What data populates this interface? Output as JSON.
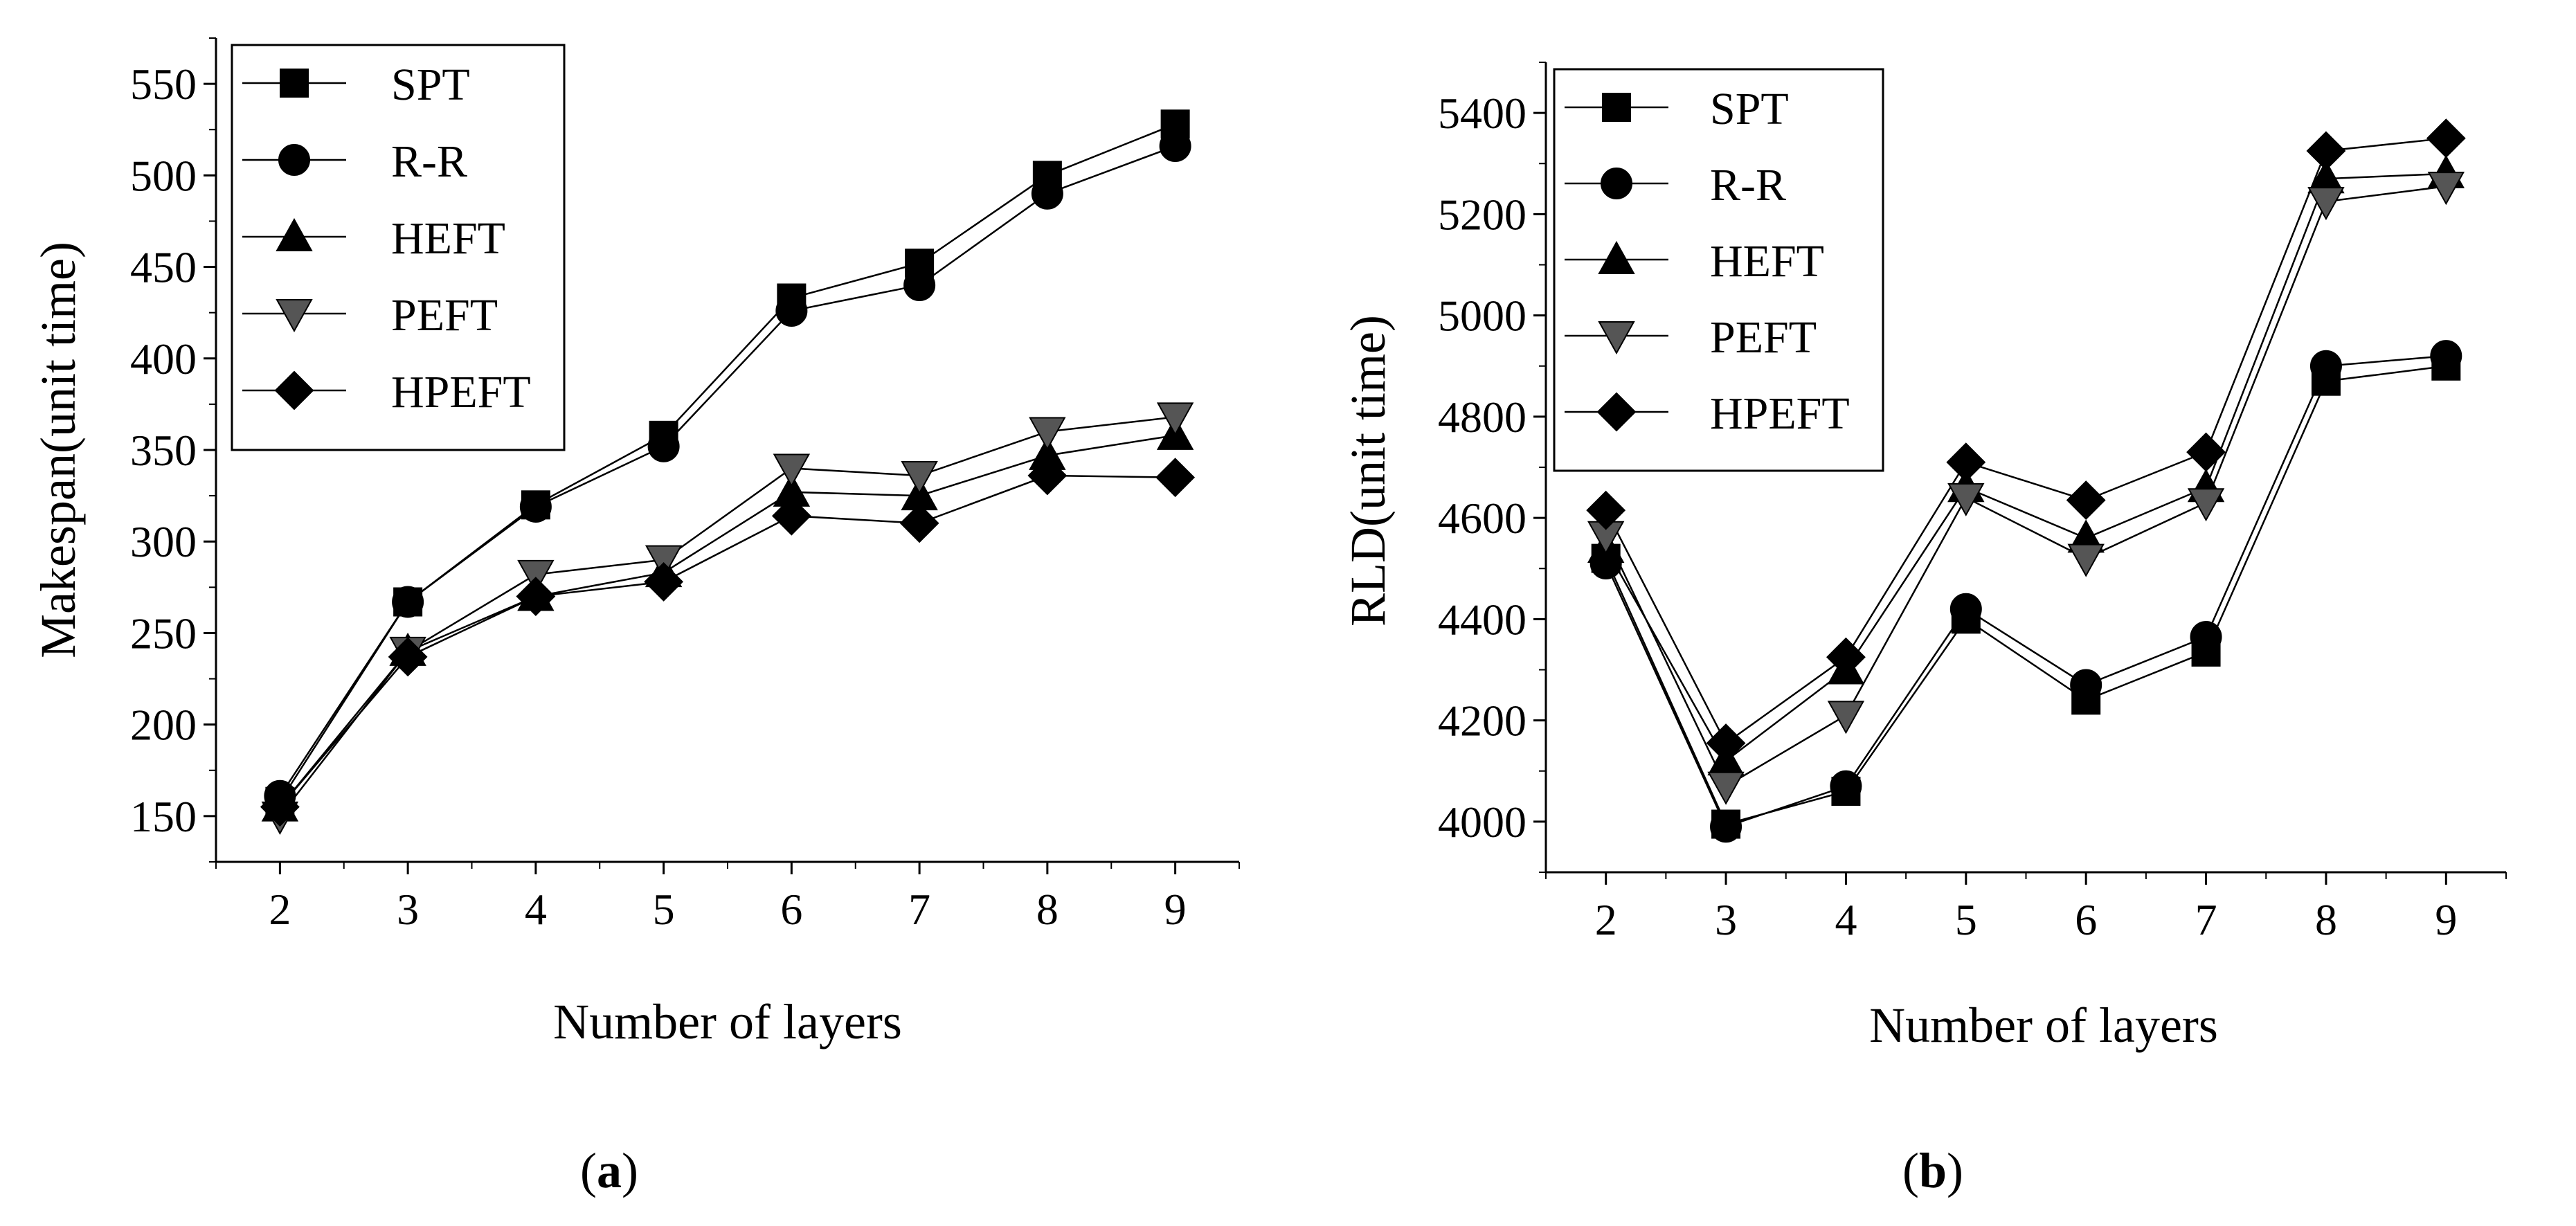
{
  "figure": {
    "panels": [
      "a",
      "b"
    ]
  },
  "chart_data": [
    {
      "type": "line",
      "panel": "a",
      "caption_letter": "a",
      "title": "",
      "xlabel": "Number of layers",
      "ylabel": "Makespan(unit time)",
      "x": [
        2,
        3,
        4,
        5,
        6,
        7,
        8,
        9
      ],
      "xlim": [
        1.5,
        9.5
      ],
      "ylim": [
        125,
        575
      ],
      "yticks": [
        150,
        200,
        250,
        300,
        350,
        400,
        450,
        500,
        550
      ],
      "legend_position": "top-left",
      "series": [
        {
          "name": "SPT",
          "marker": "square",
          "fill": "#000000",
          "values": [
            158,
            267,
            320,
            358,
            433,
            452,
            500,
            528
          ]
        },
        {
          "name": "R-R",
          "marker": "circle",
          "fill": "#000000",
          "values": [
            161,
            267,
            319,
            352,
            426,
            440,
            490,
            516
          ]
        },
        {
          "name": "HEFT",
          "marker": "triangle-up",
          "fill": "#000000",
          "values": [
            155,
            240,
            270,
            283,
            327,
            325,
            347,
            358
          ]
        },
        {
          "name": "PEFT",
          "marker": "triangle-down",
          "fill": "#555555",
          "values": [
            150,
            240,
            282,
            290,
            340,
            336,
            360,
            368
          ]
        },
        {
          "name": "HPEFT",
          "marker": "diamond",
          "fill": "#000000",
          "values": [
            155,
            237,
            270,
            278,
            314,
            310,
            336,
            335
          ]
        }
      ]
    },
    {
      "type": "line",
      "panel": "b",
      "caption_letter": "b",
      "title": "",
      "xlabel": "Number of layers",
      "ylabel": "RLD(unit time)",
      "x": [
        2,
        3,
        4,
        5,
        6,
        7,
        8,
        9
      ],
      "xlim": [
        1.5,
        9.5
      ],
      "ylim": [
        3900,
        5500
      ],
      "yticks": [
        4000,
        4200,
        4400,
        4600,
        4800,
        5000,
        5200,
        5400
      ],
      "legend_position": "top-left",
      "series": [
        {
          "name": "SPT",
          "marker": "square",
          "fill": "#000000",
          "values": [
            4520,
            3995,
            4060,
            4400,
            4240,
            4335,
            4870,
            4900
          ]
        },
        {
          "name": "R-R",
          "marker": "circle",
          "fill": "#000000",
          "values": [
            4510,
            3990,
            4070,
            4420,
            4270,
            4365,
            4900,
            4920
          ]
        },
        {
          "name": "HEFT",
          "marker": "triangle-up",
          "fill": "#000000",
          "values": [
            4540,
            4120,
            4300,
            4660,
            4560,
            4660,
            5270,
            5280
          ]
        },
        {
          "name": "PEFT",
          "marker": "triangle-down",
          "fill": "#555555",
          "values": [
            4565,
            4070,
            4210,
            4640,
            4520,
            4630,
            5225,
            5255
          ]
        },
        {
          "name": "HPEFT",
          "marker": "diamond",
          "fill": "#000000",
          "values": [
            4615,
            4155,
            4325,
            4710,
            4635,
            4730,
            5325,
            5350
          ]
        }
      ]
    }
  ]
}
